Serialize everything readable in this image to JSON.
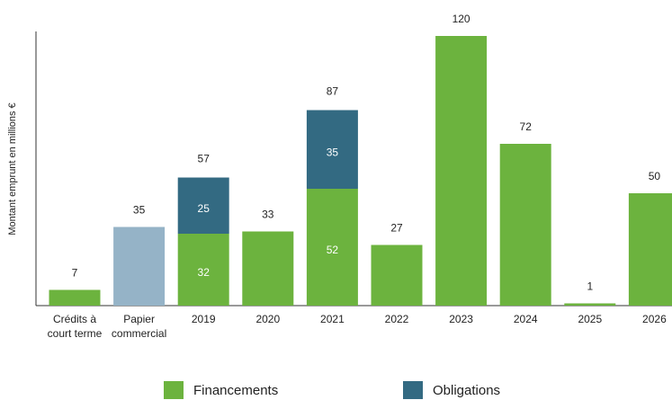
{
  "chart_data": {
    "type": "stacked_bar",
    "y_label": "Montant emprunt en millions €",
    "categories": [
      [
        "Crédits à",
        "court terme"
      ],
      [
        "Papier",
        "commercial"
      ],
      "2019",
      "2020",
      "2021",
      "2022",
      "2023",
      "2024",
      "2025",
      "2026"
    ],
    "series": [
      {
        "name": "Financements",
        "color": "#6cb33e",
        "colors": [
          "#6cb33e",
          "#95b3c7",
          "#6cb33e",
          "#6cb33e",
          "#6cb33e",
          "#6cb33e",
          "#6cb33e",
          "#6cb33e",
          "#6cb33e",
          "#6cb33e"
        ],
        "values": [
          7,
          35,
          32,
          33,
          52,
          27,
          120,
          72,
          1,
          50
        ]
      },
      {
        "name": "Obligations",
        "color": "#336a82",
        "values": [
          null,
          null,
          25,
          null,
          35,
          null,
          null,
          null,
          null,
          null
        ]
      }
    ],
    "totals": [
      null,
      null,
      57,
      null,
      87,
      null,
      null,
      null,
      null,
      null
    ],
    "ylim": [
      0,
      122
    ],
    "legend": "bottom"
  }
}
